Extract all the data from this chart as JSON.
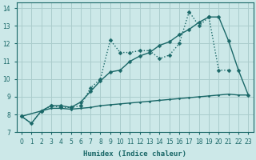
{
  "xlabel": "Humidex (Indice chaleur)",
  "bg_color": "#cce8e8",
  "grid_color": "#aacccc",
  "line_color": "#1a6868",
  "xlim": [
    -0.5,
    23.5
  ],
  "ylim": [
    7.0,
    14.3
  ],
  "xticks": [
    0,
    1,
    2,
    3,
    4,
    5,
    6,
    7,
    8,
    9,
    10,
    11,
    12,
    13,
    14,
    15,
    16,
    17,
    18,
    19,
    20,
    21,
    22,
    23
  ],
  "yticks": [
    7,
    8,
    9,
    10,
    11,
    12,
    13,
    14
  ],
  "line_jagged": {
    "x": [
      0,
      1,
      2,
      3,
      4,
      5,
      6,
      7,
      8,
      9,
      10,
      11,
      12,
      13,
      14,
      15,
      16,
      17,
      18,
      19,
      20,
      21
    ],
    "y": [
      7.9,
      7.5,
      8.2,
      8.5,
      8.4,
      8.4,
      8.5,
      9.5,
      10.0,
      12.2,
      11.5,
      11.5,
      11.6,
      11.6,
      11.15,
      11.35,
      12.0,
      13.8,
      13.0,
      13.5,
      10.5,
      10.5
    ]
  },
  "line_diagonal": {
    "x": [
      0,
      2,
      3,
      4,
      5,
      6,
      7,
      8,
      9,
      10,
      11,
      12,
      13,
      14,
      15,
      16,
      17,
      18,
      19,
      20,
      21,
      22,
      23
    ],
    "y": [
      7.9,
      8.2,
      8.5,
      8.5,
      8.4,
      8.7,
      9.3,
      9.9,
      10.4,
      10.5,
      11.0,
      11.3,
      11.5,
      11.9,
      12.1,
      12.5,
      12.8,
      13.2,
      13.5,
      13.5,
      12.15,
      10.5,
      9.1
    ]
  },
  "line_flat": {
    "x": [
      0,
      1,
      2,
      3,
      4,
      5,
      6,
      7,
      8,
      9,
      10,
      11,
      12,
      13,
      14,
      15,
      16,
      17,
      18,
      19,
      20,
      21,
      22,
      23
    ],
    "y": [
      7.9,
      7.5,
      8.2,
      8.35,
      8.35,
      8.3,
      8.35,
      8.4,
      8.5,
      8.55,
      8.6,
      8.65,
      8.7,
      8.75,
      8.8,
      8.85,
      8.9,
      8.95,
      9.0,
      9.05,
      9.1,
      9.15,
      9.1,
      9.1
    ]
  }
}
